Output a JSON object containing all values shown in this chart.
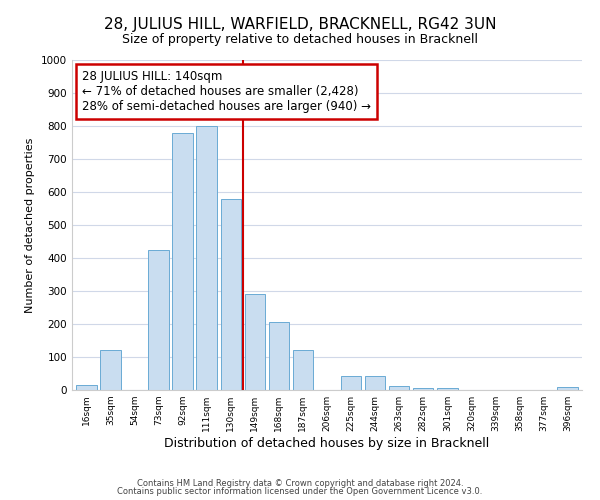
{
  "title": "28, JULIUS HILL, WARFIELD, BRACKNELL, RG42 3UN",
  "subtitle": "Size of property relative to detached houses in Bracknell",
  "xlabel": "Distribution of detached houses by size in Bracknell",
  "ylabel": "Number of detached properties",
  "bar_labels": [
    "16sqm",
    "35sqm",
    "54sqm",
    "73sqm",
    "92sqm",
    "111sqm",
    "130sqm",
    "149sqm",
    "168sqm",
    "187sqm",
    "206sqm",
    "225sqm",
    "244sqm",
    "263sqm",
    "282sqm",
    "301sqm",
    "320sqm",
    "339sqm",
    "358sqm",
    "377sqm",
    "396sqm"
  ],
  "bar_values": [
    15,
    120,
    0,
    425,
    780,
    800,
    580,
    290,
    205,
    120,
    0,
    42,
    42,
    12,
    5,
    5,
    0,
    0,
    0,
    0,
    8
  ],
  "bar_color": "#c9ddf0",
  "bar_edge_color": "#6aaad4",
  "grid_color": "#d0d8e8",
  "vline_color": "#cc0000",
  "annotation_title": "28 JULIUS HILL: 140sqm",
  "annotation_line1": "← 71% of detached houses are smaller (2,428)",
  "annotation_line2": "28% of semi-detached houses are larger (940) →",
  "annotation_box_color": "#ffffff",
  "annotation_box_edge": "#cc0000",
  "footnote1": "Contains HM Land Registry data © Crown copyright and database right 2024.",
  "footnote2": "Contains public sector information licensed under the Open Government Licence v3.0.",
  "ylim": [
    0,
    1000
  ],
  "yticks": [
    0,
    100,
    200,
    300,
    400,
    500,
    600,
    700,
    800,
    900,
    1000
  ],
  "title_fontsize": 11,
  "subtitle_fontsize": 9,
  "ylabel_fontsize": 8,
  "xlabel_fontsize": 9
}
